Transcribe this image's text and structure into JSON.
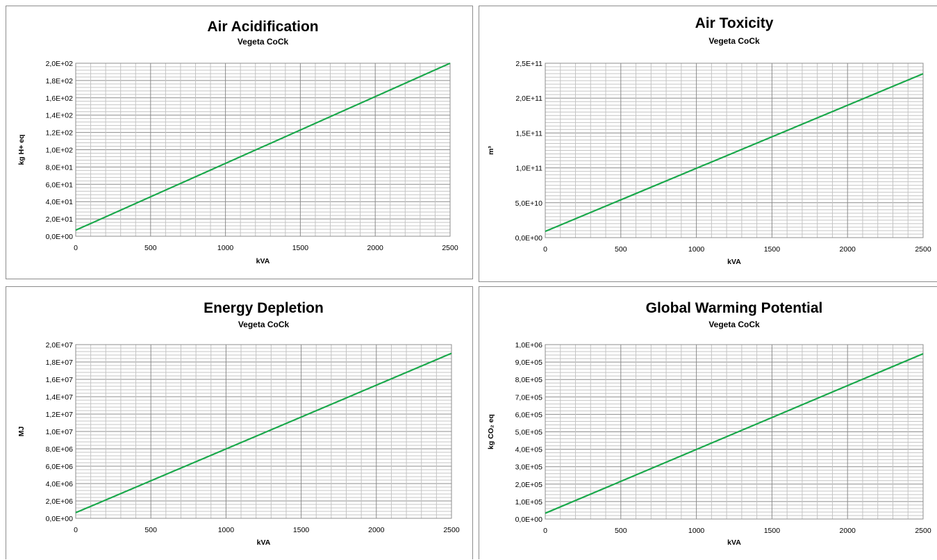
{
  "chart_data": [
    {
      "type": "line",
      "title": "Air Acidification",
      "subtitle": "Vegeta CoCk",
      "xlabel": "kVA",
      "ylabel": "kg H+ eq",
      "xlim": [
        0,
        2500
      ],
      "ylim": [
        0,
        200
      ],
      "x_ticks": [
        "0",
        "500",
        "1000",
        "1500",
        "2000",
        "2500"
      ],
      "y_ticks": [
        "0,0E+00",
        "2,0E+01",
        "4,0E+01",
        "6,0E+01",
        "8,0E+01",
        "1,0E+02",
        "1,2E+02",
        "1,4E+02",
        "1,6E+02",
        "1,8E+02",
        "2,0E+02"
      ],
      "grid": true,
      "line_color": "#1aa84b",
      "series": [
        {
          "x": [
            0,
            2500
          ],
          "y": [
            7,
            200
          ]
        }
      ]
    },
    {
      "type": "line",
      "title": "Air Toxicity",
      "subtitle": "Vegeta CoCk",
      "xlabel": "kVA",
      "ylabel": "m³",
      "xlim": [
        0,
        2500
      ],
      "ylim": [
        0,
        250000000000
      ],
      "x_ticks": [
        "0",
        "500",
        "1000",
        "1500",
        "2000",
        "2500"
      ],
      "y_ticks": [
        "0,0E+00",
        "5,0E+10",
        "1,0E+11",
        "1,5E+11",
        "2,0E+11",
        "2,5E+11"
      ],
      "grid": true,
      "line_color": "#1aa84b",
      "series": [
        {
          "x": [
            0,
            2500
          ],
          "y": [
            9000000000,
            235000000000
          ]
        }
      ]
    },
    {
      "type": "line",
      "title": "Energy Depletion",
      "subtitle": "Vegeta CoCk",
      "xlabel": "kVA",
      "ylabel": "MJ",
      "xlim": [
        0,
        2500
      ],
      "ylim": [
        0,
        20000000
      ],
      "x_ticks": [
        "0",
        "500",
        "1000",
        "1500",
        "2000",
        "2500"
      ],
      "y_ticks": [
        "0,0E+00",
        "2,0E+06",
        "4,0E+06",
        "6,0E+06",
        "8,0E+06",
        "1,0E+07",
        "1,2E+07",
        "1,4E+07",
        "1,6E+07",
        "1,8E+07",
        "2,0E+07"
      ],
      "grid": true,
      "line_color": "#1aa84b",
      "series": [
        {
          "x": [
            0,
            2500
          ],
          "y": [
            650000,
            19000000
          ]
        }
      ]
    },
    {
      "type": "line",
      "title": "Global Warming Potential",
      "subtitle": "Vegeta CoCk",
      "xlabel": "kVA",
      "ylabel": "kg CO₂ eq",
      "xlim": [
        0,
        2500
      ],
      "ylim": [
        0,
        1000000
      ],
      "x_ticks": [
        "0",
        "500",
        "1000",
        "1500",
        "2000",
        "2500"
      ],
      "y_ticks": [
        "0,0E+00",
        "1,0E+05",
        "2,0E+05",
        "3,0E+05",
        "4,0E+05",
        "5,0E+05",
        "6,0E+05",
        "7,0E+05",
        "8,0E+05",
        "9,0E+05",
        "1,0E+06"
      ],
      "grid": true,
      "line_color": "#1aa84b",
      "series": [
        {
          "x": [
            0,
            2500
          ],
          "y": [
            33000,
            948000
          ]
        }
      ]
    }
  ]
}
